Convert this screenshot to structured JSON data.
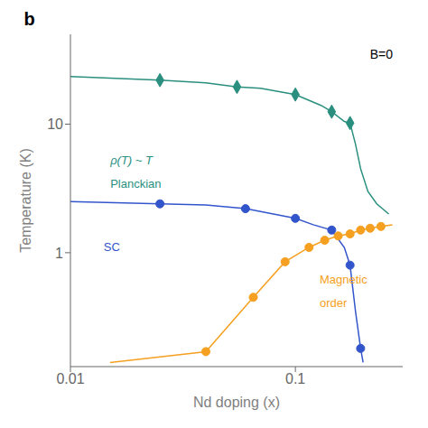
{
  "chart_data": {
    "type": "line",
    "title": "b",
    "x_label": "Nd doping (x)",
    "y_label": "Temperature (K)",
    "log": true,
    "grid": false,
    "xlim": [
      0.01,
      0.3
    ],
    "ylim": [
      0.13,
      50
    ],
    "xticks": [
      0.01,
      0.1
    ],
    "yticks": [
      1,
      10
    ],
    "series": [
      {
        "type": "line",
        "color": "#2a8f7f",
        "x": [
          0.01,
          0.025,
          0.04,
          0.055,
          0.07,
          0.1,
          0.13,
          0.145,
          0.165,
          0.175,
          0.185,
          0.195,
          0.21,
          0.23,
          0.26
        ],
        "values": [
          23.5,
          22.0,
          21.0,
          19.5,
          19.0,
          17.0,
          14.0,
          12.5,
          10.5,
          10.2,
          7.0,
          4.5,
          3.0,
          2.4,
          2.0
        ]
      },
      {
        "type": "scatter",
        "marker": "diamond",
        "color": "#2a8f7f",
        "x": [
          0.025,
          0.055,
          0.1,
          0.145,
          0.175
        ],
        "values": [
          22.0,
          19.5,
          17.0,
          12.5,
          10.2
        ]
      },
      {
        "type": "line",
        "color": "#3355cc",
        "x": [
          0.01,
          0.025,
          0.04,
          0.06,
          0.1,
          0.12,
          0.145,
          0.165,
          0.175,
          0.185,
          0.195,
          0.2
        ],
        "values": [
          2.5,
          2.4,
          2.35,
          2.2,
          1.85,
          1.65,
          1.5,
          1.1,
          0.8,
          0.35,
          0.18,
          0.14
        ]
      },
      {
        "type": "scatter",
        "marker": "circle",
        "color": "#3355cc",
        "x": [
          0.025,
          0.06,
          0.1,
          0.145,
          0.175,
          0.195
        ],
        "values": [
          2.4,
          2.2,
          1.85,
          1.5,
          0.8,
          0.18
        ]
      },
      {
        "type": "line",
        "color": "#f5a020",
        "x": [
          0.015,
          0.04,
          0.065,
          0.09,
          0.115,
          0.135,
          0.155,
          0.175,
          0.195,
          0.215,
          0.24,
          0.27
        ],
        "values": [
          0.14,
          0.17,
          0.45,
          0.85,
          1.1,
          1.25,
          1.35,
          1.4,
          1.5,
          1.55,
          1.6,
          1.65
        ]
      },
      {
        "type": "scatter",
        "marker": "circle",
        "color": "#f5a020",
        "x": [
          0.04,
          0.065,
          0.09,
          0.115,
          0.135,
          0.155,
          0.175,
          0.195,
          0.215,
          0.24
        ],
        "values": [
          0.17,
          0.45,
          0.85,
          1.1,
          1.25,
          1.35,
          1.4,
          1.5,
          1.55,
          1.6
        ]
      }
    ],
    "annotations": [
      {
        "text": "B=0"
      },
      {
        "text": "ρ(T) ~ T",
        "color": "#2a8f7f"
      },
      {
        "text": "Planckian",
        "color": "#2a8f7f"
      },
      {
        "text": "SC",
        "color": "#3355cc"
      },
      {
        "text": "Magnetic",
        "color": "#f5a020"
      },
      {
        "text": "order",
        "color": "#f5a020"
      }
    ]
  }
}
